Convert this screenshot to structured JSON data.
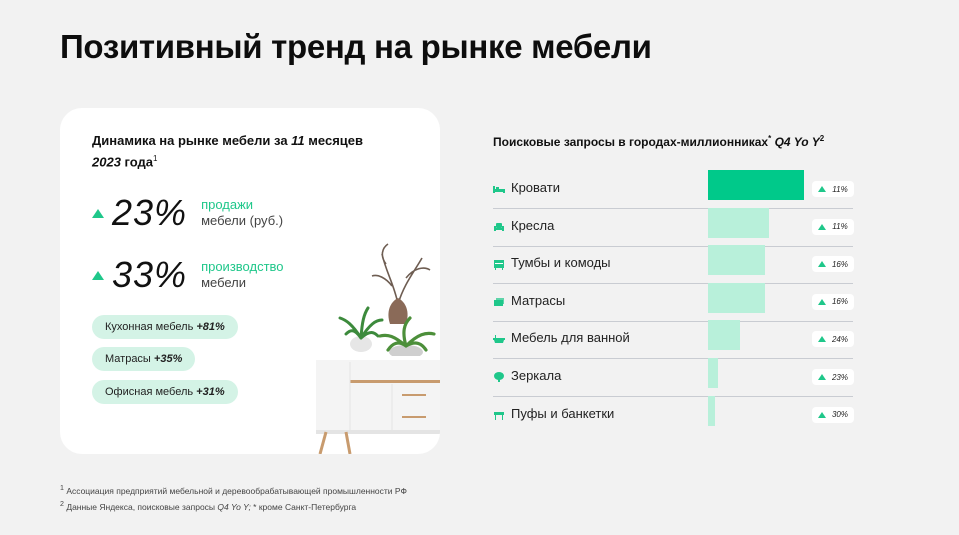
{
  "title": "Позитивный тренд на рынке мебели",
  "card": {
    "heading_main": "Динамика на рынке мебели за ",
    "heading_months": "11",
    "heading_months_suffix": " месяцев",
    "heading_year": "2023",
    "heading_year_suffix": " года",
    "heading_sup": "1",
    "stats": [
      {
        "value": "23%",
        "accent": "продажи",
        "rest": "мебели (руб.)"
      },
      {
        "value": "33%",
        "accent": "производство",
        "rest": "мебели"
      }
    ],
    "pills": [
      {
        "label": "Кухонная мебель ",
        "num": "+81%"
      },
      {
        "label": "Матрасы ",
        "num": "+35%"
      },
      {
        "label": "Офисная мебель ",
        "num": "+31%"
      }
    ]
  },
  "chart_title": {
    "text": "Поисковые запросы в городах-миллионниках",
    "sup1": "*",
    "period": "Q4 Yo Y",
    "sup2": "2"
  },
  "footnotes": {
    "n1_sup": "1",
    "n1": "Ассоциация предприятий мебельной и деревообрабатывающей промышленности РФ",
    "n2_sup": "2",
    "n2_pre": "Данные Яндекса, поисковые запросы ",
    "n2_it": "Q4 Yo Y;",
    "n2_post": " * кроме Санкт-Петербурга"
  },
  "colors": {
    "accent": "#1fc78a",
    "bar_primary": "#00c98a",
    "bar_secondary": "#b8f0da",
    "pill_bg": "#d4f3e6"
  },
  "chart_data": {
    "type": "bar",
    "orientation": "horizontal",
    "categories": [
      "Кровати",
      "Кресла",
      "Тумбы и комоды",
      "Матрасы",
      "Мебель для ванной",
      "Зеркала",
      "Пуфы и банкетки"
    ],
    "icons": [
      "bed-icon",
      "armchair-icon",
      "dresser-icon",
      "mattress-icon",
      "bath-icon",
      "mirror-icon",
      "ottoman-icon"
    ],
    "relative_values": [
      100,
      64,
      59,
      59,
      33,
      10,
      7
    ],
    "data_labels": [
      "11%",
      "11%",
      "16%",
      "16%",
      "24%",
      "23%",
      "30%"
    ],
    "highlight_index": 0
  }
}
